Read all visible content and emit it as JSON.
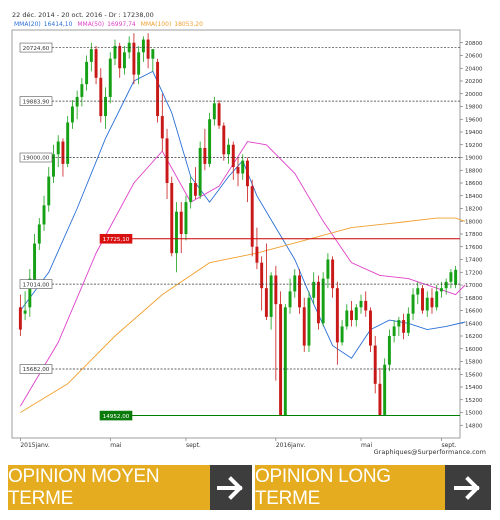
{
  "header": {
    "range_text": "22 déc. 2014 - 20 oct. 2016 - Dr : 17238,00",
    "legend": [
      {
        "label": "MMA(20)",
        "value": "16414,10",
        "color": "#2a6fd6"
      },
      {
        "label": "MMA(50)",
        "value": "16997,74",
        "color": "#e040c8"
      },
      {
        "label": "MMA(100)",
        "value": "18053,20",
        "color": "#f0a030"
      }
    ]
  },
  "credit": "Graphiques@Surperformance.com",
  "chart_data": {
    "type": "candlestick",
    "ylim": [
      14600,
      21000
    ],
    "y_ticks": [
      14800,
      15000,
      15200,
      15400,
      15600,
      15800,
      16000,
      16200,
      16400,
      16600,
      16800,
      17000,
      17200,
      17400,
      17600,
      17800,
      18000,
      18200,
      18400,
      18600,
      18800,
      19000,
      19200,
      19400,
      19600,
      19800,
      20000,
      20200,
      20400,
      20600,
      20800
    ],
    "y_tick_labels": [
      "14800",
      "15000",
      "15200",
      "15400",
      "15600",
      "15800",
      "16000",
      "16200",
      "16400",
      "16600",
      "16800",
      "17000",
      "17200",
      "17400",
      "17600",
      "17800",
      "18000",
      "18200",
      "18400",
      "18600",
      "18800",
      "19000",
      "19200",
      "19400",
      "19600",
      "19800",
      "20000",
      "20200",
      "20400",
      "20600",
      "20800"
    ],
    "x_labels": [
      {
        "week": 0,
        "label": "2015janv."
      },
      {
        "week": 19,
        "label": "mai"
      },
      {
        "week": 35,
        "label": "sept."
      },
      {
        "week": 54,
        "label": "2016janv."
      },
      {
        "week": 72,
        "label": "mai"
      },
      {
        "week": 89,
        "label": "sept."
      }
    ],
    "levels": [
      {
        "value": 20724.6,
        "label": "20724,60",
        "color": "#333333",
        "style": "dashed",
        "kind": "box"
      },
      {
        "value": 19883.9,
        "label": "19883,90",
        "color": "#333333",
        "style": "dashed",
        "kind": "box"
      },
      {
        "value": 19000.0,
        "label": "19000,00",
        "color": "#333333",
        "style": "dashed",
        "kind": "box"
      },
      {
        "value": 17725.1,
        "label": "17725,10",
        "color": "#cc0000",
        "style": "solid",
        "kind": "red"
      },
      {
        "value": 17014.0,
        "label": "17014,00",
        "color": "#333333",
        "style": "dashed",
        "kind": "box"
      },
      {
        "value": 15682.0,
        "label": "15682,00",
        "color": "#333333",
        "style": "dashed",
        "kind": "box"
      },
      {
        "value": 14952.0,
        "label": "14952,00",
        "color": "#008000",
        "style": "solid",
        "kind": "green"
      }
    ],
    "series": [
      {
        "name": "MMA(20)",
        "color": "#2a6fd6",
        "anchors": [
          [
            0,
            16600
          ],
          [
            6,
            17200
          ],
          [
            12,
            18200
          ],
          [
            18,
            19300
          ],
          [
            24,
            20200
          ],
          [
            28,
            20350
          ],
          [
            32,
            19700
          ],
          [
            36,
            18700
          ],
          [
            40,
            18300
          ],
          [
            44,
            18700
          ],
          [
            47,
            18950
          ],
          [
            50,
            18400
          ],
          [
            54,
            17900
          ],
          [
            58,
            17400
          ],
          [
            62,
            16700
          ],
          [
            66,
            16050
          ],
          [
            70,
            15850
          ],
          [
            74,
            16300
          ],
          [
            78,
            16450
          ],
          [
            82,
            16400
          ],
          [
            86,
            16300
          ],
          [
            90,
            16350
          ],
          [
            94,
            16420
          ]
        ]
      },
      {
        "name": "MMA(50)",
        "color": "#e040c8",
        "anchors": [
          [
            0,
            15100
          ],
          [
            8,
            16100
          ],
          [
            16,
            17500
          ],
          [
            24,
            18600
          ],
          [
            30,
            19100
          ],
          [
            36,
            18300
          ],
          [
            42,
            18550
          ],
          [
            48,
            19250
          ],
          [
            52,
            19200
          ],
          [
            58,
            18750
          ],
          [
            64,
            18000
          ],
          [
            70,
            17350
          ],
          [
            76,
            17150
          ],
          [
            82,
            17100
          ],
          [
            88,
            16950
          ],
          [
            92,
            16850
          ],
          [
            94,
            17000
          ]
        ]
      },
      {
        "name": "MMA(100)",
        "color": "#f0a030",
        "anchors": [
          [
            0,
            15000
          ],
          [
            10,
            15450
          ],
          [
            20,
            16200
          ],
          [
            30,
            16850
          ],
          [
            40,
            17350
          ],
          [
            50,
            17500
          ],
          [
            60,
            17700
          ],
          [
            70,
            17900
          ],
          [
            80,
            17980
          ],
          [
            88,
            18050
          ],
          [
            92,
            18050
          ],
          [
            94,
            18000
          ]
        ]
      }
    ],
    "candles": [
      [
        16650,
        16850,
        16300,
        16200
      ],
      [
        16550,
        16900,
        16600,
        16450
      ],
      [
        16650,
        17250,
        17100,
        16500
      ],
      [
        17050,
        17800,
        17650,
        16950
      ],
      [
        17650,
        18050,
        17950,
        17550
      ],
      [
        17950,
        18400,
        18250,
        17850
      ],
      [
        18250,
        18850,
        18700,
        18150
      ],
      [
        18700,
        19200,
        19050,
        18600
      ],
      [
        19050,
        19350,
        19250,
        18850
      ],
      [
        19250,
        19300,
        18900,
        18700
      ],
      [
        18900,
        19650,
        19550,
        18850
      ],
      [
        19550,
        19900,
        19800,
        19450
      ],
      [
        19800,
        20050,
        19950,
        19600
      ],
      [
        19950,
        20250,
        20150,
        19800
      ],
      [
        20150,
        20600,
        20500,
        20050
      ],
      [
        20500,
        20800,
        20700,
        20350
      ],
      [
        20700,
        20750,
        20250,
        20150
      ],
      [
        20250,
        20400,
        19650,
        19550
      ],
      [
        19650,
        20100,
        19950,
        19450
      ],
      [
        19950,
        20650,
        20550,
        19850
      ],
      [
        20550,
        20850,
        20750,
        20450
      ],
      [
        20750,
        20800,
        20400,
        20250
      ],
      [
        20400,
        20750,
        20650,
        20300
      ],
      [
        20650,
        20900,
        20800,
        20550
      ],
      [
        20800,
        20950,
        20300,
        20150
      ],
      [
        20300,
        20750,
        20650,
        20150
      ],
      [
        20650,
        20900,
        20850,
        20500
      ],
      [
        20850,
        20950,
        20550,
        20400
      ],
      [
        20550,
        20700,
        20700,
        20350
      ],
      [
        20500,
        20550,
        19650,
        19550
      ],
      [
        19650,
        20000,
        19300,
        19100
      ],
      [
        19300,
        19450,
        18600,
        18350
      ],
      [
        18600,
        18700,
        17500,
        17450
      ],
      [
        17500,
        18300,
        18150,
        17200
      ],
      [
        18150,
        18300,
        17800,
        17500
      ],
      [
        17800,
        18400,
        18300,
        17700
      ],
      [
        18300,
        18700,
        18600,
        18200
      ],
      [
        18600,
        18850,
        18400,
        18350
      ],
      [
        18400,
        19250,
        19150,
        18350
      ],
      [
        19150,
        19450,
        18900,
        18800
      ],
      [
        18900,
        19700,
        19600,
        18850
      ],
      [
        19600,
        19950,
        19850,
        19500
      ],
      [
        19850,
        19900,
        19500,
        19450
      ],
      [
        19500,
        19550,
        19050,
        18950
      ],
      [
        19050,
        19300,
        19200,
        18900
      ],
      [
        19200,
        19250,
        18850,
        18650
      ],
      [
        18850,
        19000,
        18750,
        18550
      ],
      [
        18750,
        19050,
        18950,
        18650
      ],
      [
        18950,
        19000,
        18550,
        18300
      ],
      [
        18550,
        18650,
        17600,
        17450
      ],
      [
        17600,
        17900,
        17350,
        17250
      ],
      [
        17350,
        17450,
        16950,
        16600
      ],
      [
        16950,
        17650,
        16500,
        16450
      ],
      [
        16500,
        17200,
        17150,
        16300
      ],
      [
        17150,
        17300,
        16700,
        15500
      ],
      [
        16700,
        16900,
        14950,
        14950
      ],
      [
        14950,
        16700,
        16650,
        14950
      ],
      [
        16650,
        17100,
        16900,
        16550
      ],
      [
        16900,
        17250,
        17150,
        16800
      ],
      [
        17150,
        17250,
        16650,
        16550
      ],
      [
        16650,
        16800,
        16050,
        15950
      ],
      [
        16050,
        16900,
        16800,
        15950
      ],
      [
        16800,
        17200,
        17050,
        16700
      ],
      [
        17050,
        17150,
        16400,
        16300
      ],
      [
        16400,
        17200,
        17100,
        16350
      ],
      [
        17100,
        17500,
        17400,
        16950
      ],
      [
        17400,
        17450,
        16950,
        16800
      ],
      [
        16950,
        17050,
        16100,
        15750
      ],
      [
        16100,
        16450,
        16350,
        16050
      ],
      [
        16350,
        16700,
        16600,
        16300
      ],
      [
        16600,
        16750,
        16450,
        16350
      ],
      [
        16450,
        16700,
        16650,
        16350
      ],
      [
        16650,
        16850,
        16750,
        16550
      ],
      [
        16750,
        16900,
        16600,
        16500
      ],
      [
        16600,
        16650,
        16050,
        15950
      ],
      [
        16050,
        16200,
        15450,
        15300
      ],
      [
        15450,
        15700,
        14950,
        14950
      ],
      [
        14950,
        15850,
        15750,
        14950
      ],
      [
        15750,
        16300,
        16200,
        15650
      ],
      [
        16200,
        16450,
        16350,
        16100
      ],
      [
        16350,
        16500,
        16450,
        16200
      ],
      [
        16450,
        16550,
        16250,
        16150
      ],
      [
        16250,
        16650,
        16550,
        16200
      ],
      [
        16550,
        16950,
        16850,
        16450
      ],
      [
        16850,
        17050,
        16950,
        16700
      ],
      [
        16950,
        17000,
        16600,
        16550
      ],
      [
        16600,
        16900,
        16800,
        16500
      ],
      [
        16800,
        16950,
        16650,
        16550
      ],
      [
        16650,
        17000,
        16900,
        16600
      ],
      [
        16900,
        17050,
        16950,
        16800
      ],
      [
        16950,
        17100,
        17050,
        16850
      ],
      [
        17050,
        17250,
        17200,
        16950
      ],
      [
        17000,
        17300,
        17238,
        16950
      ]
    ]
  },
  "opinions": [
    {
      "label": "OPINION MOYEN TERME",
      "arrow_icon": "arrow-right-icon"
    },
    {
      "label": "OPINION LONG TERME",
      "arrow_icon": "arrow-right-icon"
    }
  ]
}
